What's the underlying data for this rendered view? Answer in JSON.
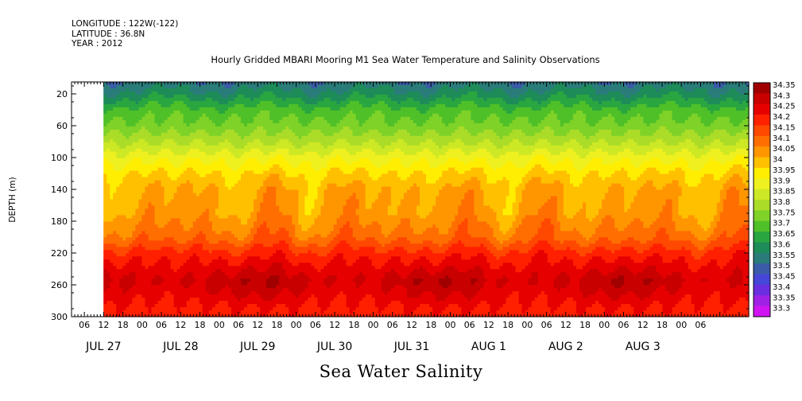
{
  "header": {
    "longitude": "LONGITUDE : 122W(-122)",
    "latitude": "LATITUDE : 36.8N",
    "year": "YEAR : 2012"
  },
  "chart_data": {
    "type": "heatmap",
    "title": "Hourly Gridded MBARI Mooring M1 Sea Water Temperature and Salinity Observations",
    "bottom_title": "Sea Water Salinity",
    "ylabel": "DEPTH (m)",
    "y_ticks": [
      "20",
      "60",
      "100",
      "140",
      "180",
      "220",
      "260",
      "300"
    ],
    "y_tick_values": [
      20,
      60,
      100,
      140,
      180,
      220,
      260,
      300
    ],
    "ylim": [
      300,
      5
    ],
    "y_inverted": true,
    "x_hour_labels": [
      "06",
      "12",
      "18",
      "00",
      "06",
      "12",
      "18",
      "00",
      "06",
      "12",
      "18",
      "00",
      "06",
      "12",
      "18",
      "00",
      "06",
      "12",
      "18",
      "00",
      "06",
      "12",
      "18",
      "00",
      "06",
      "12",
      "18",
      "00",
      "06",
      "12",
      "18",
      "00",
      "06"
    ],
    "x_day_labels": [
      "JUL 27",
      "JUL 28",
      "JUL 29",
      "JUL 30",
      "JUL 31",
      "AUG  1",
      "AUG  2",
      "AUG  3"
    ],
    "x_start_hour": 6,
    "x_range_hours": [
      2,
      213
    ],
    "data_start_hour": 12,
    "colorbar_labels": [
      "34.35",
      "34.3",
      "34.25",
      "34.2",
      "34.15",
      "34.1",
      "34.05",
      "34",
      "33.95",
      "33.9",
      "33.85",
      "33.8",
      "33.75",
      "33.7",
      "33.65",
      "33.6",
      "33.55",
      "33.5",
      "33.45",
      "33.4",
      "33.35",
      "33.3"
    ],
    "colorbar_colors": [
      "#a00000",
      "#c80000",
      "#e60000",
      "#ff2000",
      "#ff4800",
      "#ff6e00",
      "#ff9600",
      "#ffc000",
      "#ffee00",
      "#eef020",
      "#cde824",
      "#aadc28",
      "#7ed228",
      "#4fc028",
      "#2aa640",
      "#1e8c58",
      "#2a7c7a",
      "#3a5ca8",
      "#4646d8",
      "#6a2ee0",
      "#a021e6",
      "#d013f2"
    ],
    "profile": [
      {
        "depth": 5,
        "salinity": 33.56
      },
      {
        "depth": 20,
        "salinity": 33.62
      },
      {
        "depth": 40,
        "salinity": 33.72
      },
      {
        "depth": 60,
        "salinity": 33.77
      },
      {
        "depth": 80,
        "salinity": 33.84
      },
      {
        "depth": 100,
        "salinity": 33.93
      },
      {
        "depth": 120,
        "salinity": 34.0
      },
      {
        "depth": 140,
        "salinity": 34.05
      },
      {
        "depth": 170,
        "salinity": 34.07
      },
      {
        "depth": 200,
        "salinity": 34.13
      },
      {
        "depth": 220,
        "salinity": 34.22
      },
      {
        "depth": 240,
        "salinity": 34.28
      },
      {
        "depth": 255,
        "salinity": 34.32
      },
      {
        "depth": 270,
        "salinity": 34.29
      },
      {
        "depth": 290,
        "salinity": 34.24
      },
      {
        "depth": 300,
        "salinity": 34.23
      }
    ]
  }
}
